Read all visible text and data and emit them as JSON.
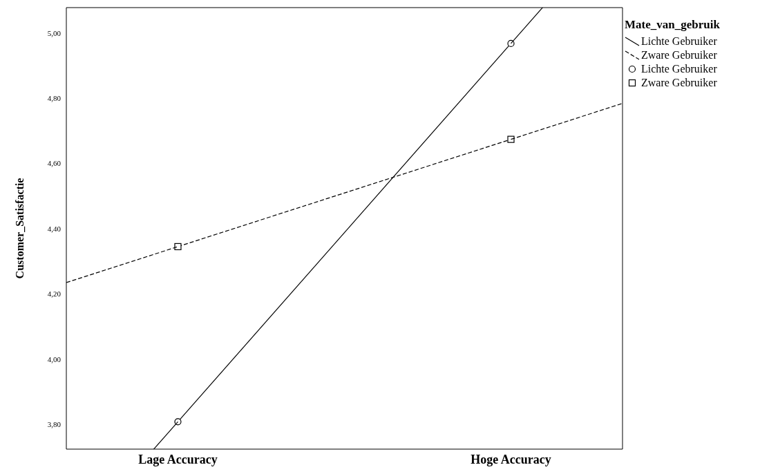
{
  "chart_data": {
    "type": "line",
    "ylabel": "Customer_Satisfactie",
    "legend_title": "Mate_van_gebruik",
    "legend": "top right",
    "grid": false,
    "categories": [
      "Lage Accuracy",
      "Hoge Accuracy"
    ],
    "ylim": [
      3.724,
      5.078
    ],
    "yticks": [
      {
        "value": 3.8,
        "label": "3,80"
      },
      {
        "value": 4,
        "label": "4,00"
      },
      {
        "value": 4.2,
        "label": "4,20"
      },
      {
        "value": 4.4,
        "label": "4,40"
      },
      {
        "value": 4.6,
        "label": "4,60"
      },
      {
        "value": 4.8,
        "label": "4,80"
      },
      {
        "value": 5,
        "label": "5,00"
      }
    ],
    "series": [
      {
        "name": "Lichte Gebruiker",
        "line_style": "solid",
        "marker": "none",
        "color": "#000000",
        "values": [
          3.808,
          4.968
        ]
      },
      {
        "name": "Zware Gebruiker",
        "line_style": "dashed",
        "marker": "none",
        "color": "#000000",
        "values": [
          4.345,
          4.674
        ]
      },
      {
        "name": "Lichte Gebruiker",
        "type": "scatter",
        "marker": "circle",
        "color": "#000000",
        "values": [
          3.808,
          4.968
        ]
      },
      {
        "name": "Zware Gebruiker",
        "type": "scatter",
        "marker": "square",
        "color": "#000000",
        "values": [
          4.345,
          4.674
        ]
      }
    ]
  }
}
